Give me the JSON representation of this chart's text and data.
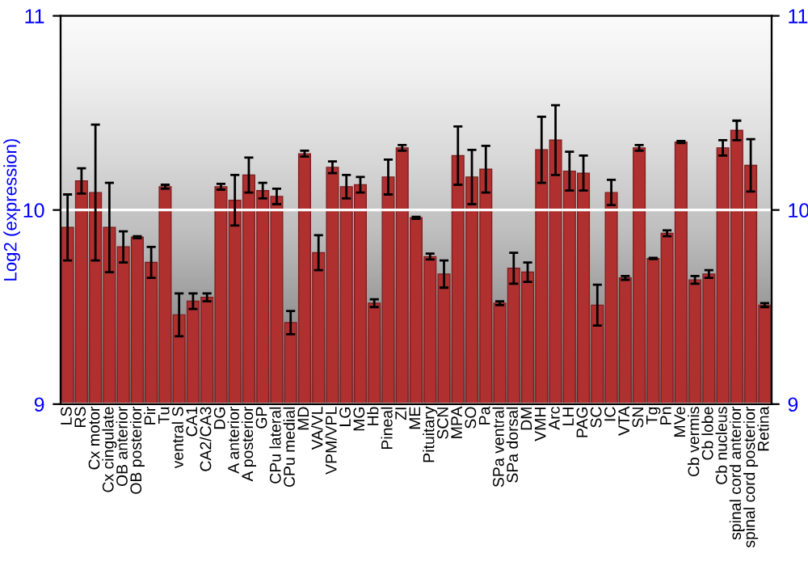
{
  "chart_data": {
    "type": "bar",
    "ylabel": "Log2 (expression)",
    "categories": [
      "LS",
      "RS",
      "Cx motor",
      "Cx cingulate",
      "OB anterior",
      "OB posterior",
      "Pir",
      "Tu",
      "ventral S",
      "CA1",
      "CA2/CA3",
      "DG",
      "A anterior",
      "A posterior",
      "GP",
      "CPu lateral",
      "CPu medial",
      "MD",
      "VA/VL",
      "VPM/VPL",
      "LG",
      "MG",
      "Hb",
      "Pineal",
      "ZI",
      "ME",
      "Pituitary",
      "SCN",
      "MPA",
      "SO",
      "Pa",
      "SPa ventral",
      "SPa dorsal",
      "DM",
      "VMH",
      "Arc",
      "LH",
      "PAG",
      "SC",
      "IC",
      "VTA",
      "SN",
      "Tg",
      "Pn",
      "MVe",
      "Cb vermis",
      "Cb lobe",
      "Cb nucleus",
      "spinal cord anterior",
      "spinal cord posterior",
      "Retina"
    ],
    "values": [
      9.91,
      10.15,
      10.09,
      9.91,
      9.81,
      9.86,
      9.73,
      10.12,
      9.46,
      9.53,
      9.55,
      10.12,
      10.05,
      10.18,
      10.1,
      10.07,
      9.42,
      10.29,
      9.78,
      10.22,
      10.12,
      10.13,
      9.52,
      10.17,
      10.32,
      9.96,
      9.76,
      9.67,
      10.28,
      10.17,
      10.21,
      9.52,
      9.7,
      9.68,
      10.31,
      10.36,
      10.2,
      10.19,
      9.51,
      10.09,
      9.65,
      10.32,
      9.75,
      9.88,
      10.35,
      9.64,
      9.67,
      10.32,
      10.41,
      10.23,
      9.51
    ],
    "errors": [
      0.17,
      0.065,
      0.35,
      0.23,
      0.08,
      0.005,
      0.08,
      0.01,
      0.11,
      0.04,
      0.02,
      0.015,
      0.13,
      0.09,
      0.04,
      0.04,
      0.06,
      0.015,
      0.09,
      0.03,
      0.06,
      0.04,
      0.02,
      0.09,
      0.015,
      0.005,
      0.015,
      0.07,
      0.15,
      0.14,
      0.12,
      0.01,
      0.08,
      0.05,
      0.17,
      0.18,
      0.1,
      0.09,
      0.105,
      0.065,
      0.01,
      0.015,
      0.003,
      0.015,
      0.005,
      0.02,
      0.02,
      0.04,
      0.05,
      0.135,
      0.01
    ],
    "color": "#b03030",
    "ylim": [
      9,
      11
    ],
    "yticks": [
      9,
      10,
      11
    ],
    "y2lim": [
      9,
      11
    ],
    "y2ticks": [
      9,
      10,
      11
    ],
    "grid": "y"
  }
}
